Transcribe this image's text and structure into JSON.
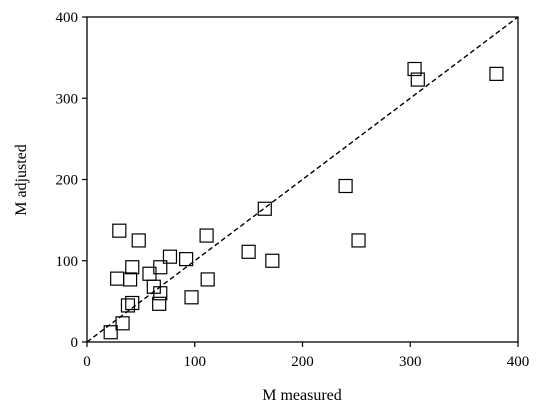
{
  "chart_data": {
    "type": "scatter",
    "title": "",
    "xlabel": "M measured",
    "ylabel": "M adjusted",
    "xlim": [
      0,
      400
    ],
    "ylim": [
      0,
      400
    ],
    "xticks": [
      0,
      100,
      200,
      300,
      400
    ],
    "yticks": [
      0,
      100,
      200,
      300,
      400
    ],
    "xtick_labels": [
      "0",
      "100",
      "200",
      "300",
      "400"
    ],
    "ytick_labels": [
      "0",
      "100",
      "200",
      "300",
      "400"
    ],
    "grid": false,
    "legend": "none",
    "marker": "open-square",
    "colors": {
      "marker_edge": "#000000",
      "reference_line": "#000000",
      "axes": "#000000"
    },
    "series": [
      {
        "x": [
          22,
          33,
          38,
          42,
          40,
          42,
          28,
          30,
          48,
          58,
          62,
          68,
          67,
          68,
          77,
          92,
          97,
          112,
          111,
          150,
          165,
          172,
          240,
          252,
          304,
          307,
          380
        ],
        "y": [
          12,
          23,
          45,
          48,
          77,
          92,
          78,
          137,
          125,
          84,
          68,
          60,
          47,
          92,
          105,
          102,
          55,
          77,
          131,
          111,
          164,
          100,
          192,
          125,
          336,
          323,
          330
        ]
      }
    ],
    "reference_line": {
      "style": "dashed",
      "x": [
        0,
        400
      ],
      "y": [
        0,
        400
      ]
    }
  }
}
